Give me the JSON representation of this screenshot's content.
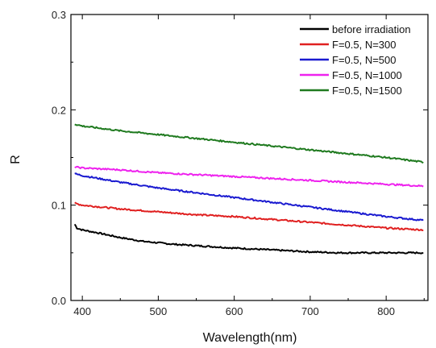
{
  "chart_data": {
    "type": "line",
    "title": "",
    "xlabel": "Wavelength(nm)",
    "ylabel": "R",
    "xlim": [
      385,
      855
    ],
    "ylim": [
      0.0,
      0.3
    ],
    "x_ticks": [
      400,
      500,
      600,
      700,
      800
    ],
    "x_tick_labels": [
      "400",
      "500",
      "600",
      "700",
      "800"
    ],
    "y_ticks": [
      0.0,
      0.1,
      0.2,
      0.3
    ],
    "y_tick_labels": [
      "0.0",
      "0.1",
      "0.2",
      "0.3"
    ],
    "grid": false,
    "legend_position": "top-right",
    "series": [
      {
        "name": "before irradiation",
        "color": "#000000",
        "x": [
          390,
          393,
          400,
          420,
          450,
          480,
          520,
          560,
          600,
          650,
          700,
          740,
          780,
          820,
          850
        ],
        "y": [
          0.08,
          0.076,
          0.074,
          0.071,
          0.066,
          0.062,
          0.059,
          0.057,
          0.055,
          0.053,
          0.051,
          0.05,
          0.05,
          0.05,
          0.05
        ]
      },
      {
        "name": "F=0.5, N=300",
        "color": "#e02020",
        "x": [
          390,
          400,
          450,
          500,
          550,
          600,
          650,
          700,
          750,
          800,
          850
        ],
        "y": [
          0.102,
          0.1,
          0.096,
          0.093,
          0.09,
          0.088,
          0.085,
          0.082,
          0.079,
          0.076,
          0.074
        ]
      },
      {
        "name": "F=0.5, N=500",
        "color": "#1a1ad0",
        "x": [
          390,
          400,
          450,
          500,
          550,
          600,
          650,
          700,
          750,
          800,
          850
        ],
        "y": [
          0.133,
          0.131,
          0.124,
          0.118,
          0.113,
          0.108,
          0.103,
          0.098,
          0.093,
          0.088,
          0.084
        ]
      },
      {
        "name": "F=0.5, N=1000",
        "color": "#ee22ee",
        "x": [
          390,
          400,
          450,
          500,
          550,
          600,
          650,
          700,
          750,
          800,
          850
        ],
        "y": [
          0.14,
          0.139,
          0.137,
          0.134,
          0.132,
          0.13,
          0.128,
          0.126,
          0.124,
          0.122,
          0.12
        ]
      },
      {
        "name": "F=0.5, N=1500",
        "color": "#1f7a1f",
        "x": [
          390,
          400,
          450,
          500,
          550,
          600,
          650,
          700,
          750,
          800,
          850
        ],
        "y": [
          0.185,
          0.183,
          0.178,
          0.174,
          0.17,
          0.166,
          0.162,
          0.158,
          0.154,
          0.15,
          0.145
        ]
      }
    ]
  }
}
